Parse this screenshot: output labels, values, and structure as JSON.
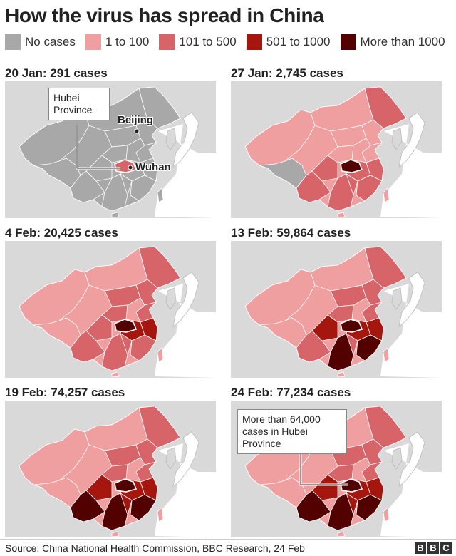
{
  "title": "How the virus has spread in China",
  "legend": [
    {
      "label": "No cases",
      "color": "#a8a8a8"
    },
    {
      "label": "1 to 100",
      "color": "#ef9f9f"
    },
    {
      "label": "101 to 500",
      "color": "#d76469"
    },
    {
      "label": "501 to 1000",
      "color": "#a5170e"
    },
    {
      "label": "More than 1000",
      "color": "#520000"
    }
  ],
  "panels": [
    {
      "title": "20 Jan: 291 cases",
      "base": 0,
      "core": [],
      "mid": [],
      "high": [],
      "hubei": 2
    },
    {
      "title": "27 Jan: 2,745 cases",
      "base": 1,
      "core": [
        1,
        1,
        1,
        1
      ],
      "mid": [],
      "high": [],
      "hubei": 4
    },
    {
      "title": "4 Feb: 20,425 cases",
      "base": 1,
      "core": [
        2,
        2,
        2,
        2
      ],
      "mid": [
        3,
        3
      ],
      "high": [],
      "hubei": 4
    },
    {
      "title": "13 Feb: 59,864 cases",
      "base": 1,
      "core": [
        2,
        2,
        2,
        2
      ],
      "mid": [
        3,
        3,
        3
      ],
      "high": [
        4,
        4
      ],
      "hubei": 4
    },
    {
      "title": "19 Feb: 74,257 cases",
      "base": 1,
      "core": [
        2,
        2,
        2,
        2
      ],
      "mid": [
        3,
        3,
        3,
        3
      ],
      "high": [
        4,
        4,
        4
      ],
      "hubei": 4
    },
    {
      "title": "24 Feb: 77,234 cases",
      "base": 1,
      "core": [
        2,
        2,
        2,
        2
      ],
      "mid": [
        3,
        3,
        3,
        3
      ],
      "high": [
        4,
        4,
        4
      ],
      "hubei": 4
    }
  ],
  "annotations": {
    "hubei_province": "Hubei\nProvince",
    "beijing": "Beijing",
    "wuhan": "Wuhan",
    "hubei_cases": "More than 64,000\ncases in Hubei\nProvince"
  },
  "source": "Source: China National Health Commission, BBC Research, 24 Feb",
  "logo": [
    "B",
    "B",
    "C"
  ],
  "colors": {
    "land_outside": "#d9d9d9",
    "sea": "#ffffff",
    "border": "#ffffff"
  }
}
